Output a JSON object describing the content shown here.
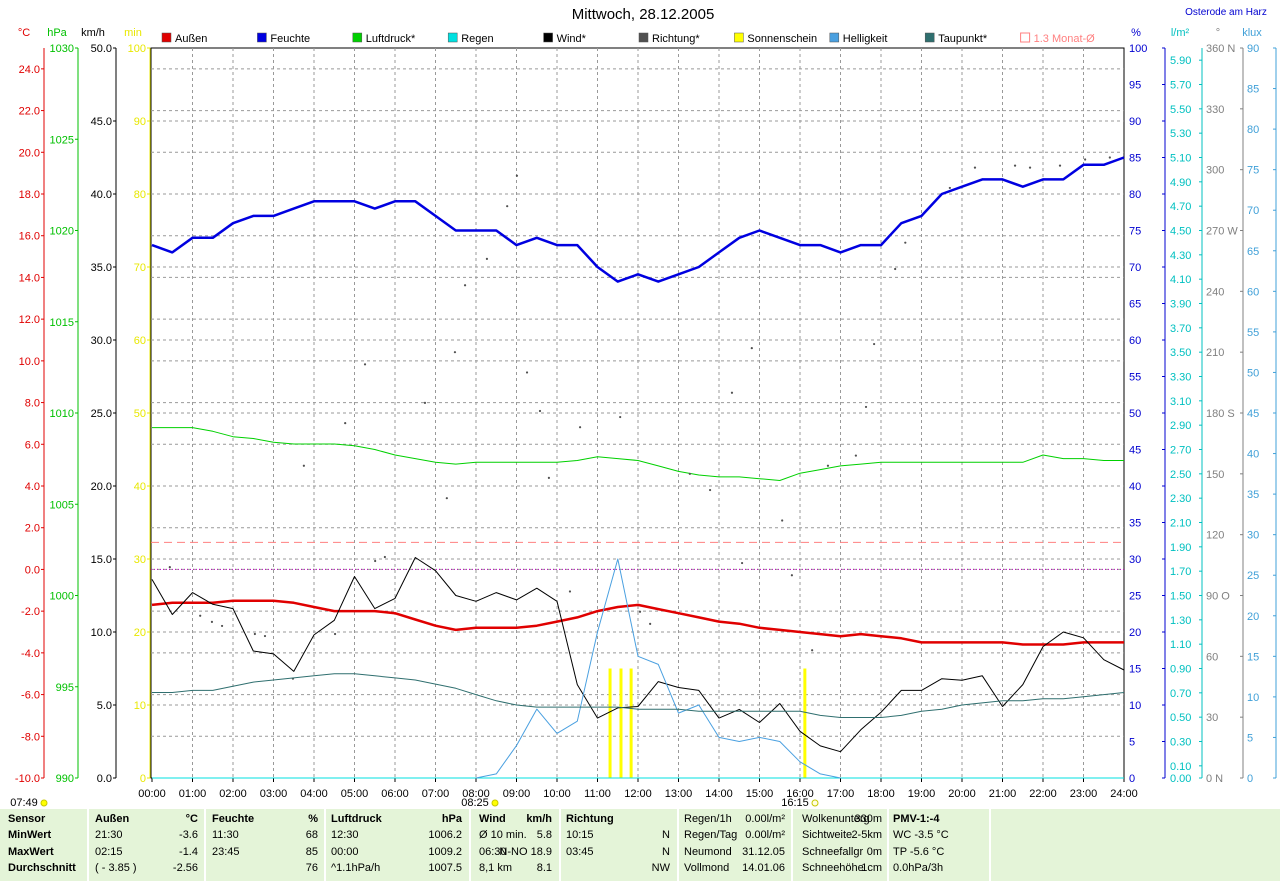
{
  "chart_data": {
    "type": "line",
    "title": "Mittwoch, 28.12.2005",
    "location": "Osterode am Harz",
    "sun": {
      "dawn": "07:49",
      "rise": "08:25",
      "set": "16:15"
    },
    "xlim": [
      0,
      24
    ],
    "xticks": [
      {
        "value": 0,
        "label": "00:00"
      },
      {
        "value": 1,
        "label": "01:00"
      },
      {
        "value": 2,
        "label": "02:00"
      },
      {
        "value": 3,
        "label": "03:00"
      },
      {
        "value": 4,
        "label": "04:00"
      },
      {
        "value": 5,
        "label": "05:00"
      },
      {
        "value": 6,
        "label": "06:00"
      },
      {
        "value": 7,
        "label": "07:00"
      },
      {
        "value": 8,
        "label": "08:00"
      },
      {
        "value": 9,
        "label": "09:00"
      },
      {
        "value": 10,
        "label": "10:00"
      },
      {
        "value": 11,
        "label": "11:00"
      },
      {
        "value": 12,
        "label": "12:00"
      },
      {
        "value": 13,
        "label": "13:00"
      },
      {
        "value": 14,
        "label": "14:00"
      },
      {
        "value": 15,
        "label": "15:00"
      },
      {
        "value": 16,
        "label": "16:00"
      },
      {
        "value": 17,
        "label": "17:00"
      },
      {
        "value": 18,
        "label": "18:00"
      },
      {
        "value": 19,
        "label": "19:00"
      },
      {
        "value": 20,
        "label": "20:00"
      },
      {
        "value": 21,
        "label": "21:00"
      },
      {
        "value": 22,
        "label": "22:00"
      },
      {
        "value": 23,
        "label": "23:00"
      },
      {
        "value": 24,
        "label": "24:00"
      }
    ],
    "grid": true,
    "axes": [
      {
        "unit": "°C",
        "color": "#e00000",
        "ylim": [
          -10,
          25
        ],
        "yticks": [
          {
            "value": -10,
            "label": "-10.0"
          },
          {
            "value": -8,
            "label": "-8.0"
          },
          {
            "value": -6,
            "label": "-6.0"
          },
          {
            "value": -4,
            "label": "-4.0"
          },
          {
            "value": -2,
            "label": "-2.0"
          },
          {
            "value": 0,
            "label": "0.0"
          },
          {
            "value": 2,
            "label": "2.0"
          },
          {
            "value": 4,
            "label": "4.0"
          },
          {
            "value": 6,
            "label": "6.0"
          },
          {
            "value": 8,
            "label": "8.0"
          },
          {
            "value": 10,
            "label": "10.0"
          },
          {
            "value": 12,
            "label": "12.0"
          },
          {
            "value": 14,
            "label": "14.0"
          },
          {
            "value": 16,
            "label": "16.0"
          },
          {
            "value": 18,
            "label": "18.0"
          },
          {
            "value": 20,
            "label": "20.0"
          },
          {
            "value": 22,
            "label": "22.0"
          },
          {
            "value": 24,
            "label": "24.0"
          }
        ]
      },
      {
        "unit": "hPa",
        "color": "#00c000",
        "ylim": [
          990,
          1030
        ],
        "yticks": [
          990,
          995,
          1000,
          1005,
          1010,
          1015,
          1020,
          1025,
          1030
        ]
      },
      {
        "unit": "km/h",
        "color": "#000000",
        "ylim": [
          0,
          50
        ],
        "yticks": [
          {
            "value": 0,
            "label": "0.0"
          },
          {
            "value": 5,
            "label": "5.0"
          },
          {
            "value": 10,
            "label": "10.0"
          },
          {
            "value": 15,
            "label": "15.0"
          },
          {
            "value": 20,
            "label": "20.0"
          },
          {
            "value": 25,
            "label": "25.0"
          },
          {
            "value": 30,
            "label": "30.0"
          },
          {
            "value": 35,
            "label": "35.0"
          },
          {
            "value": 40,
            "label": "40.0"
          },
          {
            "value": 45,
            "label": "45.0"
          },
          {
            "value": 50,
            "label": "50.0"
          }
        ]
      },
      {
        "unit": "min",
        "color": "#e8e800",
        "ylim": [
          0,
          100
        ],
        "yticks": [
          0,
          10,
          20,
          30,
          40,
          50,
          60,
          70,
          80,
          90,
          100
        ]
      },
      {
        "unit": "%",
        "color": "#0000d0",
        "ylim": [
          0,
          100
        ],
        "yticks": [
          0,
          5,
          10,
          15,
          20,
          25,
          30,
          35,
          40,
          45,
          50,
          55,
          60,
          65,
          70,
          75,
          80,
          85,
          90,
          95,
          100
        ]
      },
      {
        "unit": "l/m²",
        "color": "#00c0c0",
        "ylim": [
          0,
          6
        ],
        "yticks": [
          {
            "value": 0,
            "label": "0.00"
          },
          {
            "value": 0.1,
            "label": "0.10"
          },
          {
            "value": 0.3,
            "label": "0.30"
          },
          {
            "value": 0.5,
            "label": "0.50"
          },
          {
            "value": 0.7,
            "label": "0.70"
          },
          {
            "value": 0.9,
            "label": "0.90"
          },
          {
            "value": 1.1,
            "label": "1.10"
          },
          {
            "value": 1.3,
            "label": "1.30"
          },
          {
            "value": 1.5,
            "label": "1.50"
          },
          {
            "value": 1.7,
            "label": "1.70"
          },
          {
            "value": 1.9,
            "label": "1.90"
          },
          {
            "value": 2.1,
            "label": "2.10"
          },
          {
            "value": 2.3,
            "label": "2.30"
          },
          {
            "value": 2.5,
            "label": "2.50"
          },
          {
            "value": 2.7,
            "label": "2.70"
          },
          {
            "value": 2.9,
            "label": "2.90"
          },
          {
            "value": 3.1,
            "label": "3.10"
          },
          {
            "value": 3.3,
            "label": "3.30"
          },
          {
            "value": 3.5,
            "label": "3.50"
          },
          {
            "value": 3.7,
            "label": "3.70"
          },
          {
            "value": 3.9,
            "label": "3.90"
          },
          {
            "value": 4.1,
            "label": "4.10"
          },
          {
            "value": 4.3,
            "label": "4.30"
          },
          {
            "value": 4.5,
            "label": "4.50"
          },
          {
            "value": 4.7,
            "label": "4.70"
          },
          {
            "value": 4.9,
            "label": "4.90"
          },
          {
            "value": 5.1,
            "label": "5.10"
          },
          {
            "value": 5.3,
            "label": "5.30"
          },
          {
            "value": 5.5,
            "label": "5.50"
          },
          {
            "value": 5.7,
            "label": "5.70"
          },
          {
            "value": 5.9,
            "label": "5.90"
          }
        ]
      },
      {
        "unit": "°",
        "color": "#808080",
        "ylim": [
          0,
          360
        ],
        "yticks": [
          {
            "value": 0,
            "label": "0 N"
          },
          30,
          60,
          {
            "value": 90,
            "label": "90 O"
          },
          120,
          150,
          {
            "value": 180,
            "label": "180 S"
          },
          210,
          240,
          {
            "value": 270,
            "label": "270 W"
          },
          300,
          330,
          {
            "value": 360,
            "label": "360 N"
          }
        ]
      },
      {
        "unit": "klux",
        "color": "#40a0d8",
        "ylim": [
          0,
          90
        ],
        "yticks": [
          0,
          5,
          10,
          15,
          20,
          25,
          30,
          35,
          40,
          45,
          50,
          55,
          60,
          65,
          70,
          75,
          80,
          85,
          90
        ]
      }
    ],
    "x": [
      0,
      0.5,
      1,
      1.5,
      2,
      2.5,
      3,
      3.5,
      4,
      4.5,
      5,
      5.5,
      6,
      6.5,
      7,
      7.5,
      8,
      8.5,
      9,
      9.5,
      10,
      10.5,
      11,
      11.5,
      12,
      12.5,
      13,
      13.5,
      14,
      14.5,
      15,
      15.5,
      16,
      16.5,
      17,
      17.5,
      18,
      18.5,
      19,
      19.5,
      20,
      20.5,
      21,
      21.5,
      22,
      22.5,
      23,
      23.5,
      24
    ],
    "series": [
      {
        "name": "Außen",
        "type": "line",
        "color": "#e00000",
        "axis": "°C",
        "values": [
          -1.7,
          -1.6,
          -1.6,
          -1.6,
          -1.5,
          -1.5,
          -1.5,
          -1.6,
          -1.8,
          -2.0,
          -2.0,
          -2.0,
          -2.1,
          -2.4,
          -2.7,
          -2.9,
          -2.8,
          -2.8,
          -2.8,
          -2.7,
          -2.5,
          -2.3,
          -2.0,
          -1.8,
          -1.7,
          -1.9,
          -2.1,
          -2.3,
          -2.5,
          -2.6,
          -2.8,
          -2.9,
          -3.0,
          -3.1,
          -3.2,
          -3.1,
          -3.2,
          -3.3,
          -3.5,
          -3.5,
          -3.5,
          -3.5,
          -3.5,
          -3.6,
          -3.6,
          -3.6,
          -3.5,
          -3.5,
          -3.5
        ]
      },
      {
        "name": "Feuchte",
        "type": "line",
        "color": "#0000e0",
        "axis": "%",
        "values": [
          73,
          72,
          74,
          74,
          76,
          77,
          77,
          78,
          79,
          79,
          79,
          78,
          79,
          79,
          77,
          75,
          75,
          75,
          73,
          74,
          73,
          73,
          70,
          68,
          69,
          68,
          69,
          70,
          72,
          74,
          75,
          74,
          73,
          73,
          72,
          73,
          73,
          76,
          77,
          80,
          81,
          82,
          82,
          81,
          82,
          82,
          84,
          84,
          85
        ]
      },
      {
        "name": "Luftdruck*",
        "type": "line",
        "color": "#00d000",
        "axis": "hPa",
        "values": [
          1009.2,
          1009.2,
          1009.2,
          1009.0,
          1008.7,
          1008.6,
          1008.4,
          1008.3,
          1008.3,
          1008.3,
          1008.2,
          1008.0,
          1007.7,
          1007.5,
          1007.3,
          1007.2,
          1007.3,
          1007.3,
          1007.3,
          1007.3,
          1007.3,
          1007.4,
          1007.6,
          1007.5,
          1007.4,
          1007.1,
          1006.8,
          1006.6,
          1006.5,
          1006.5,
          1006.4,
          1006.3,
          1006.7,
          1006.9,
          1007.1,
          1007.2,
          1007.3,
          1007.3,
          1007.3,
          1007.3,
          1007.3,
          1007.3,
          1007.3,
          1007.3,
          1007.7,
          1007.5,
          1007.5,
          1007.4,
          1007.4
        ]
      },
      {
        "name": "Regen",
        "type": "line",
        "color": "#00e0e0",
        "axis": "l/m²",
        "x": [
          0,
          24
        ],
        "values": [
          0,
          0
        ]
      },
      {
        "name": "Wind*",
        "type": "line",
        "color": "#000000",
        "axis": "km/h",
        "values": [
          13.6,
          11.2,
          12.7,
          11.9,
          11.6,
          8.7,
          8.5,
          7.3,
          9.8,
          10.8,
          13.8,
          11.6,
          12.3,
          15.1,
          14.2,
          12.5,
          12.1,
          12.7,
          12.2,
          13.0,
          12.1,
          6.4,
          4.1,
          4.8,
          4.9,
          6.6,
          6.2,
          6.0,
          4.1,
          4.7,
          3.8,
          5.1,
          3.2,
          2.2,
          1.8,
          3.3,
          4.5,
          6.0,
          6.0,
          6.8,
          6.7,
          7.0,
          4.9,
          6.4,
          9.0,
          10.0,
          9.6,
          8.1,
          7.4
        ]
      },
      {
        "name": "Richtung*",
        "type": "scatter",
        "color": "#505050",
        "axis": "°",
        "x": [
          0.44,
          1.19,
          1.48,
          1.73,
          2.54,
          2.79,
          3.48,
          3.75,
          4.52,
          4.77,
          5.26,
          5.51,
          5.75,
          6.74,
          7.28,
          7.48,
          7.73,
          8.27,
          8.77,
          9.01,
          9.26,
          9.58,
          9.8,
          10.32,
          10.57,
          11.56,
          12.05,
          12.3,
          13.28,
          13.78,
          14.32,
          14.57,
          14.81,
          15.56,
          15.8,
          16.3,
          16.69,
          17.38,
          17.63,
          17.83,
          18.35,
          18.6,
          19.7,
          20.32,
          21.31,
          21.68,
          22.42,
          23.04,
          23.65
        ],
        "values": [
          104,
          80,
          77,
          75,
          71,
          70,
          49,
          154,
          71,
          175,
          204,
          107,
          109,
          185,
          138,
          210,
          243,
          256,
          282,
          297,
          200,
          181,
          148,
          92,
          173,
          178,
          82,
          76,
          150,
          142,
          190,
          106,
          212,
          127,
          100,
          63,
          154,
          159,
          183,
          214,
          251,
          264,
          291,
          301,
          302,
          301,
          302,
          305,
          306
        ]
      },
      {
        "name": "Sonnenschein",
        "type": "bar",
        "color": "#ffff00",
        "axis": "min",
        "x": [
          11.31,
          11.58,
          11.83,
          16.12
        ],
        "values": [
          15,
          15,
          15,
          15
        ]
      },
      {
        "name": "Helligkeit",
        "type": "line",
        "color": "#4aa0e0",
        "axis": "klux",
        "values": [
          null,
          null,
          null,
          null,
          null,
          null,
          null,
          null,
          null,
          null,
          null,
          null,
          null,
          null,
          null,
          null,
          0,
          0.5,
          4,
          8.5,
          5.5,
          7,
          18,
          27,
          15,
          14,
          8,
          9,
          5,
          4.5,
          5,
          4.5,
          2,
          0.5,
          0,
          null,
          null,
          null,
          null,
          null,
          null,
          null,
          null,
          null,
          null,
          null,
          null,
          null,
          null
        ]
      },
      {
        "name": "Taupunkt*",
        "type": "line",
        "color": "#2f6f6f",
        "axis": "°C",
        "values": [
          -5.9,
          -5.9,
          -5.8,
          -5.8,
          -5.6,
          -5.4,
          -5.3,
          -5.2,
          -5.1,
          -5.0,
          -5.0,
          -5.1,
          -5.2,
          -5.3,
          -5.5,
          -5.7,
          -6.0,
          -6.3,
          -6.5,
          -6.6,
          -6.6,
          -6.6,
          -6.6,
          -6.6,
          -6.7,
          -6.7,
          -6.7,
          -6.8,
          -6.8,
          -6.8,
          -6.8,
          -6.8,
          -6.8,
          -7.0,
          -7.1,
          -7.1,
          -7.1,
          -7.0,
          -6.8,
          -6.7,
          -6.5,
          -6.4,
          -6.3,
          -6.3,
          -6.2,
          -6.2,
          -6.1,
          -6.0,
          -5.9
        ]
      },
      {
        "name": "1.3 Monat-Ø",
        "type": "hline",
        "color": "#ff8080",
        "axis": "°C",
        "value": 1.3
      }
    ]
  },
  "table": {
    "row_labels": [
      "Sensor",
      "MinWert",
      "MaxWert",
      "Durchschnitt"
    ],
    "groups": [
      {
        "title": "Außen",
        "unit": "°C",
        "rows": [
          [
            "21:30",
            "-3.6"
          ],
          [
            "02:15",
            "-1.4"
          ],
          [
            "( - 3.85 )",
            "-2.56"
          ]
        ]
      },
      {
        "title": "Feuchte",
        "unit": "%",
        "rows": [
          [
            "11:30",
            "68"
          ],
          [
            "23:45",
            "85"
          ],
          [
            "76"
          ]
        ]
      },
      {
        "title": "Luftdruck",
        "unit": "hPa",
        "rows": [
          [
            "12:30",
            "1006.2"
          ],
          [
            "00:00",
            "1009.2"
          ],
          [
            "^1.1hPa/h",
            "1007.5"
          ]
        ]
      },
      {
        "title": "Wind",
        "unit": "km/h",
        "rows": [
          [
            "Ø 10 min.",
            "5.8"
          ],
          [
            "06:30",
            "N-NO 18.9"
          ],
          [
            "8,1 km",
            "8.1"
          ]
        ]
      },
      {
        "title": "Richtung",
        "rows": [
          [
            "10:15",
            "N"
          ],
          [
            "03:45",
            "N"
          ],
          [
            "NW"
          ]
        ]
      },
      {
        "rows": [
          [
            "Regen/1h",
            "0.00l/m²"
          ],
          [
            "Regen/Tag",
            "0.00l/m²"
          ],
          [
            "Neumond",
            "31.12.05"
          ],
          [
            "Vollmond",
            "14.01.06"
          ]
        ]
      },
      {
        "rows": [
          [
            "Wolkenunterg",
            "330m"
          ],
          [
            "Sichtweite",
            "2-5km"
          ],
          [
            "Schneefallgr",
            "0m"
          ],
          [
            "Schneehöhe",
            "1cm"
          ]
        ]
      },
      {
        "lines": [
          "PMV-1:-4",
          "WC -3.5 °C",
          "TP -5.6 °C",
          "0.0hPa/3h"
        ]
      }
    ]
  }
}
